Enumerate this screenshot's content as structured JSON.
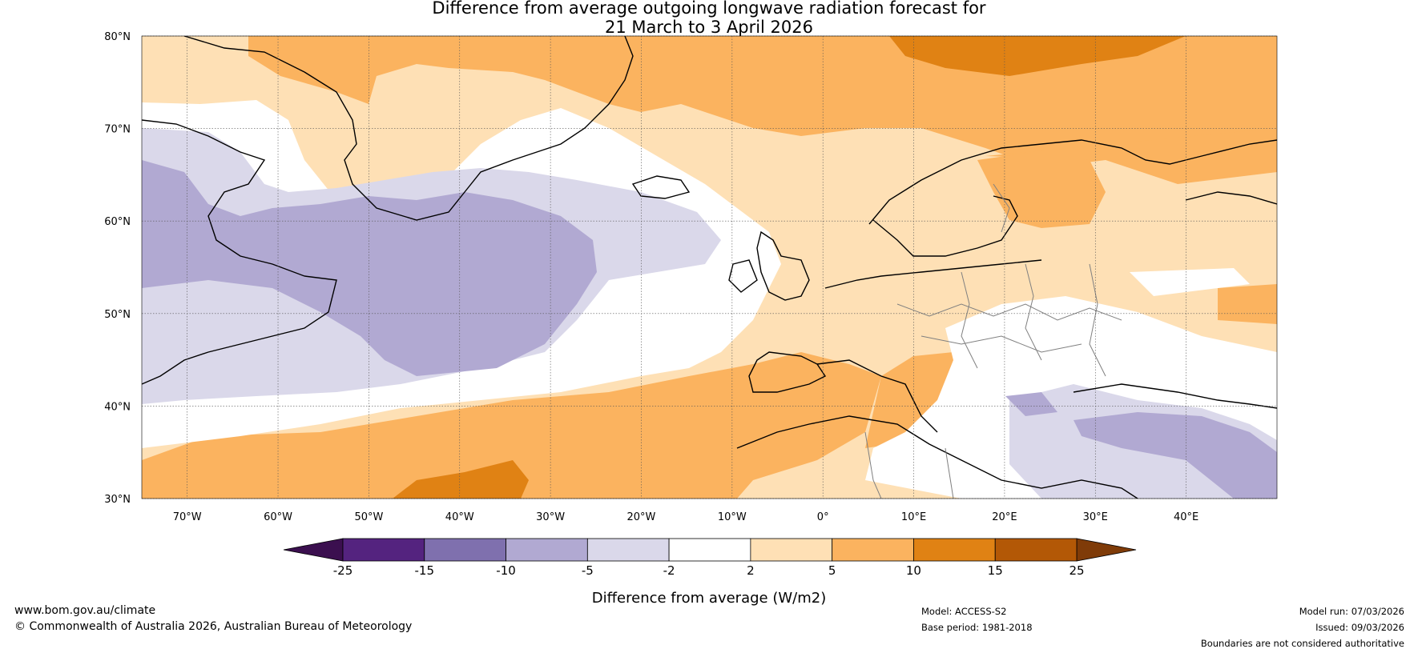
{
  "title": {
    "line1": "Difference from average outgoing longwave radiation forecast for",
    "line2": "21 March to 3 April 2026"
  },
  "map_data": {
    "region": "North Atlantic and Europe",
    "lon_range": [
      -75,
      50
    ],
    "lat_range": [
      30,
      80
    ],
    "lat_labels": [
      "80°N",
      "70°N",
      "60°N",
      "50°N",
      "40°N",
      "30°N"
    ],
    "lon_labels": [
      "70°W",
      "60°W",
      "50°W",
      "40°W",
      "30°W",
      "20°W",
      "10°W",
      "0°",
      "10°E",
      "20°E",
      "30°E",
      "40°E"
    ],
    "gridlines": "dotted",
    "features": [
      "coastlines",
      "country borders"
    ]
  },
  "colorbar": {
    "label": "Difference from average (W/m2)",
    "ticks": [
      "-25",
      "-15",
      "-10",
      "-5",
      "-2",
      "2",
      "5",
      "10",
      "15",
      "25"
    ],
    "colors": {
      "under": "#3b0f4f",
      "c1": "#54237f",
      "c2": "#7f70ae",
      "c3": "#b1a9d2",
      "c4": "#dad8ea",
      "c5": "#ffffff",
      "c6": "#fee0b5",
      "c7": "#fbb35f",
      "c8": "#e08214",
      "c9": "#b35806",
      "over": "#7f3b08"
    }
  },
  "footer": {
    "url": "www.bom.gov.au/climate",
    "copyright": "© Commonwealth of Australia 2026, Australian Bureau of Meteorology",
    "model": "Model: ACCESS-S2",
    "base_period": "Base period: 1981-2018",
    "model_run": "Model run: 07/03/2026",
    "issued": "Issued: 09/03/2026",
    "disclaimer": "Boundaries are not considered authoritative"
  }
}
